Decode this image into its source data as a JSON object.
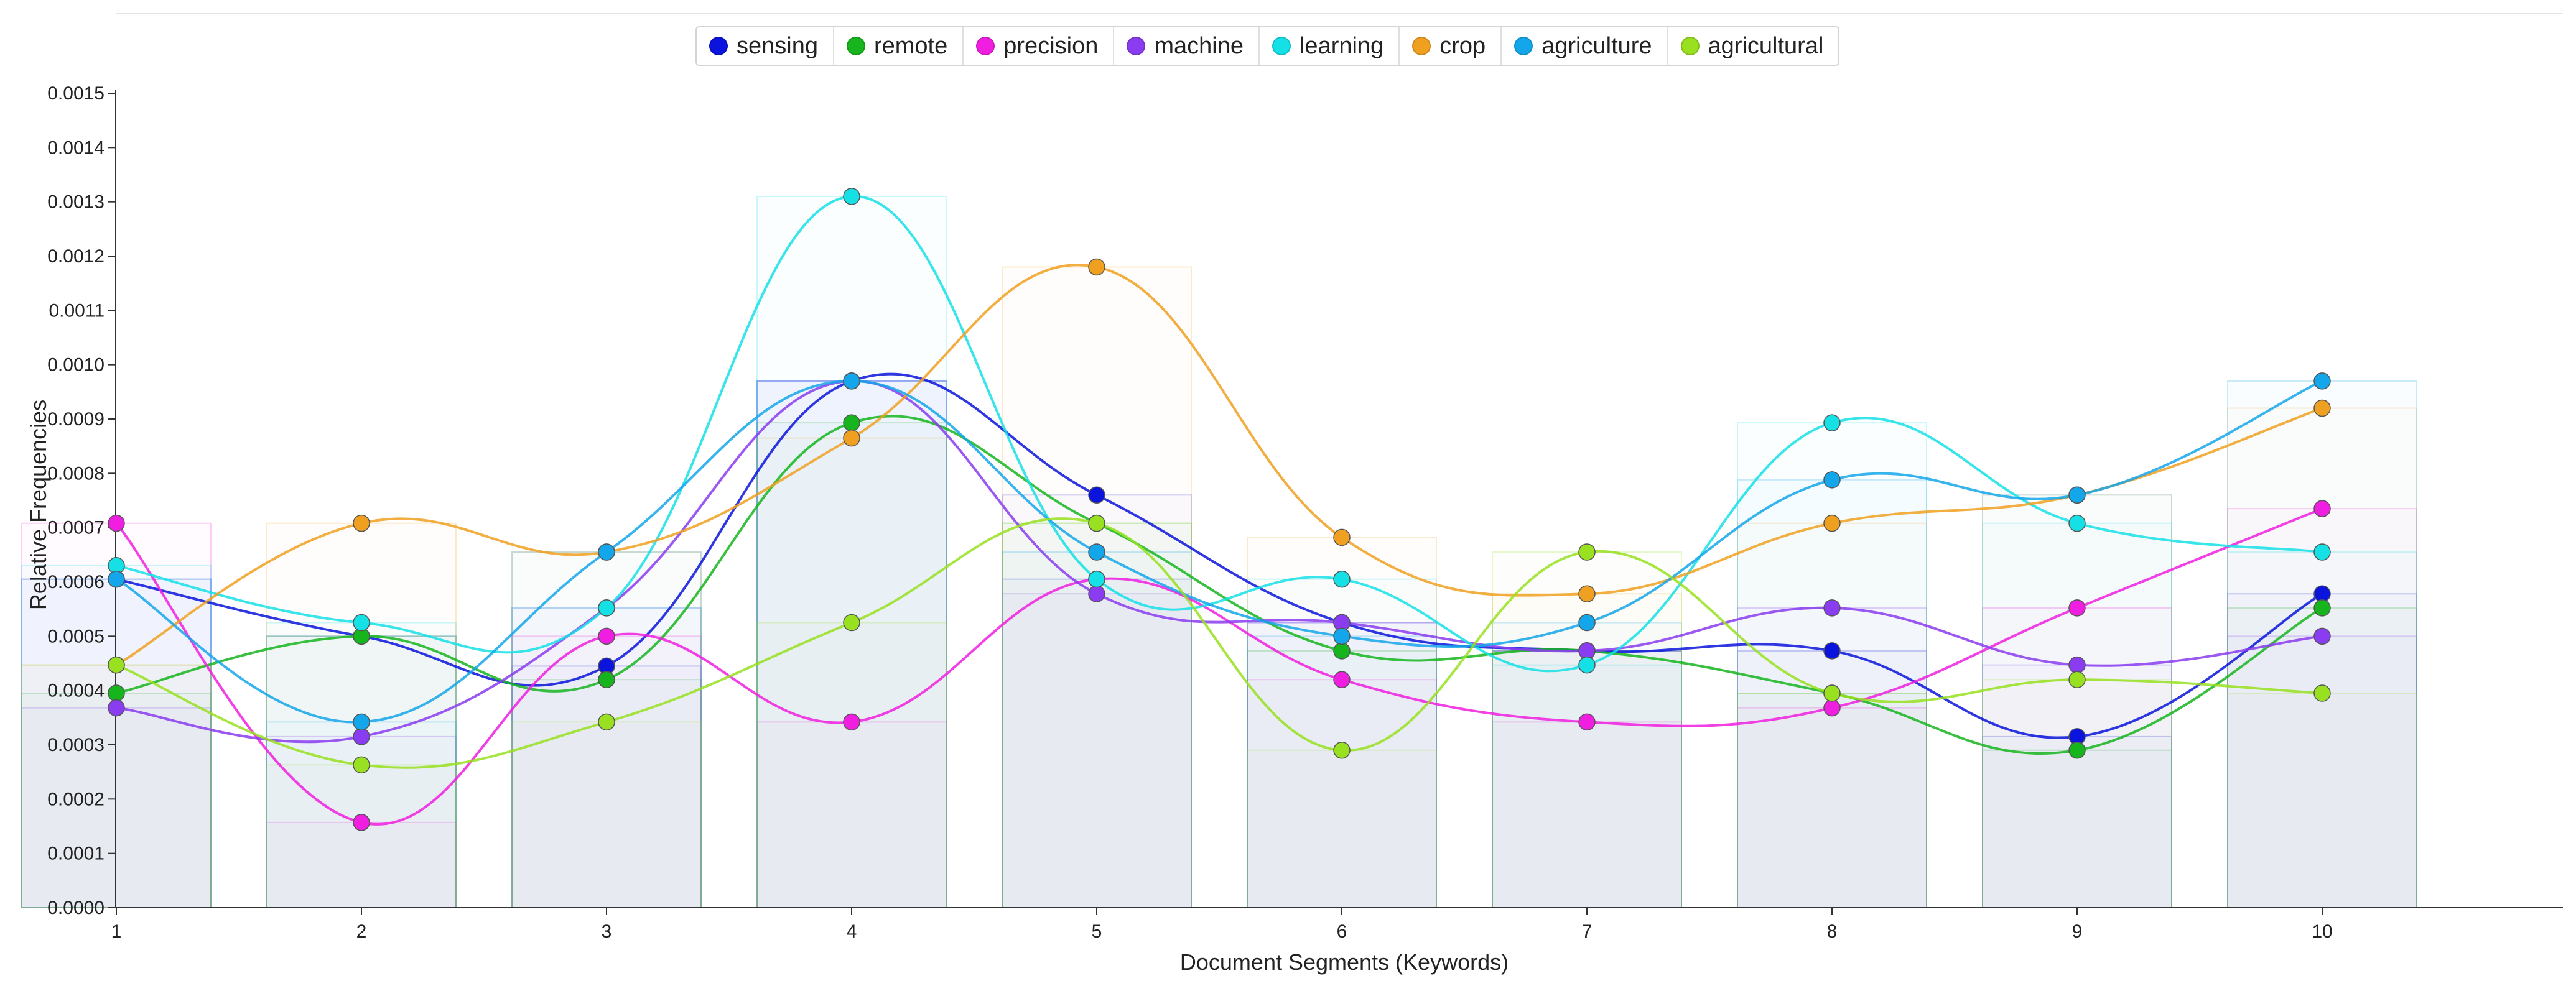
{
  "chart_data": {
    "type": "line",
    "title": "",
    "xlabel": "Document Segments (Keywords)",
    "ylabel": "Relative Frequencies",
    "categories": [
      "1",
      "2",
      "3",
      "4",
      "5",
      "6",
      "7",
      "8",
      "9",
      "10"
    ],
    "ylim": [
      0,
      0.0015
    ],
    "yticks": [
      "0.0000",
      "0.0001",
      "0.0002",
      "0.0003",
      "0.0004",
      "0.0005",
      "0.0006",
      "0.0007",
      "0.0008",
      "0.0009",
      "0.0010",
      "0.0011",
      "0.0012",
      "0.0013",
      "0.0014",
      "0.0015"
    ],
    "legend_position": "top-center",
    "series": [
      {
        "name": "sensing",
        "color": "#0a14dc",
        "values": [
          0.000605,
          0.0005,
          0.000445,
          0.00097,
          0.00076,
          0.000525,
          0.000473,
          0.000473,
          0.000315,
          0.000578
        ]
      },
      {
        "name": "remote",
        "color": "#16b51e",
        "values": [
          0.000395,
          0.0005,
          0.00042,
          0.000893,
          0.000708,
          0.000473,
          0.000473,
          0.000395,
          0.00029,
          0.000552
        ]
      },
      {
        "name": "precision",
        "color": "#f01ee0",
        "values": [
          0.000708,
          0.000157,
          0.0005,
          0.000342,
          0.000605,
          0.00042,
          0.000342,
          0.000368,
          0.000552,
          0.000735
        ]
      },
      {
        "name": "machine",
        "color": "#8a3cf0",
        "values": [
          0.000368,
          0.000315,
          0.000552,
          0.00097,
          0.000578,
          0.000525,
          0.000473,
          0.000552,
          0.000447,
          0.0005
        ]
      },
      {
        "name": "learning",
        "color": "#14e0e6",
        "values": [
          0.00063,
          0.000525,
          0.000552,
          0.00131,
          0.000605,
          0.000605,
          0.000447,
          0.000893,
          0.000708,
          0.000655
        ]
      },
      {
        "name": "crop",
        "color": "#f0a020",
        "values": [
          0.000447,
          0.000708,
          0.000655,
          0.000865,
          0.00118,
          0.000682,
          0.000578,
          0.000708,
          0.00076,
          0.00092
        ]
      },
      {
        "name": "agriculture",
        "color": "#14a6ea",
        "values": [
          0.000605,
          0.000342,
          0.000655,
          0.00097,
          0.000655,
          0.0005,
          0.000525,
          0.000788,
          0.00076,
          0.00097
        ]
      },
      {
        "name": "agricultural",
        "color": "#98e020",
        "values": [
          0.000447,
          0.000263,
          0.000342,
          0.000525,
          0.000708,
          0.00029,
          0.000655,
          0.000395,
          0.00042,
          0.000395
        ]
      }
    ]
  }
}
